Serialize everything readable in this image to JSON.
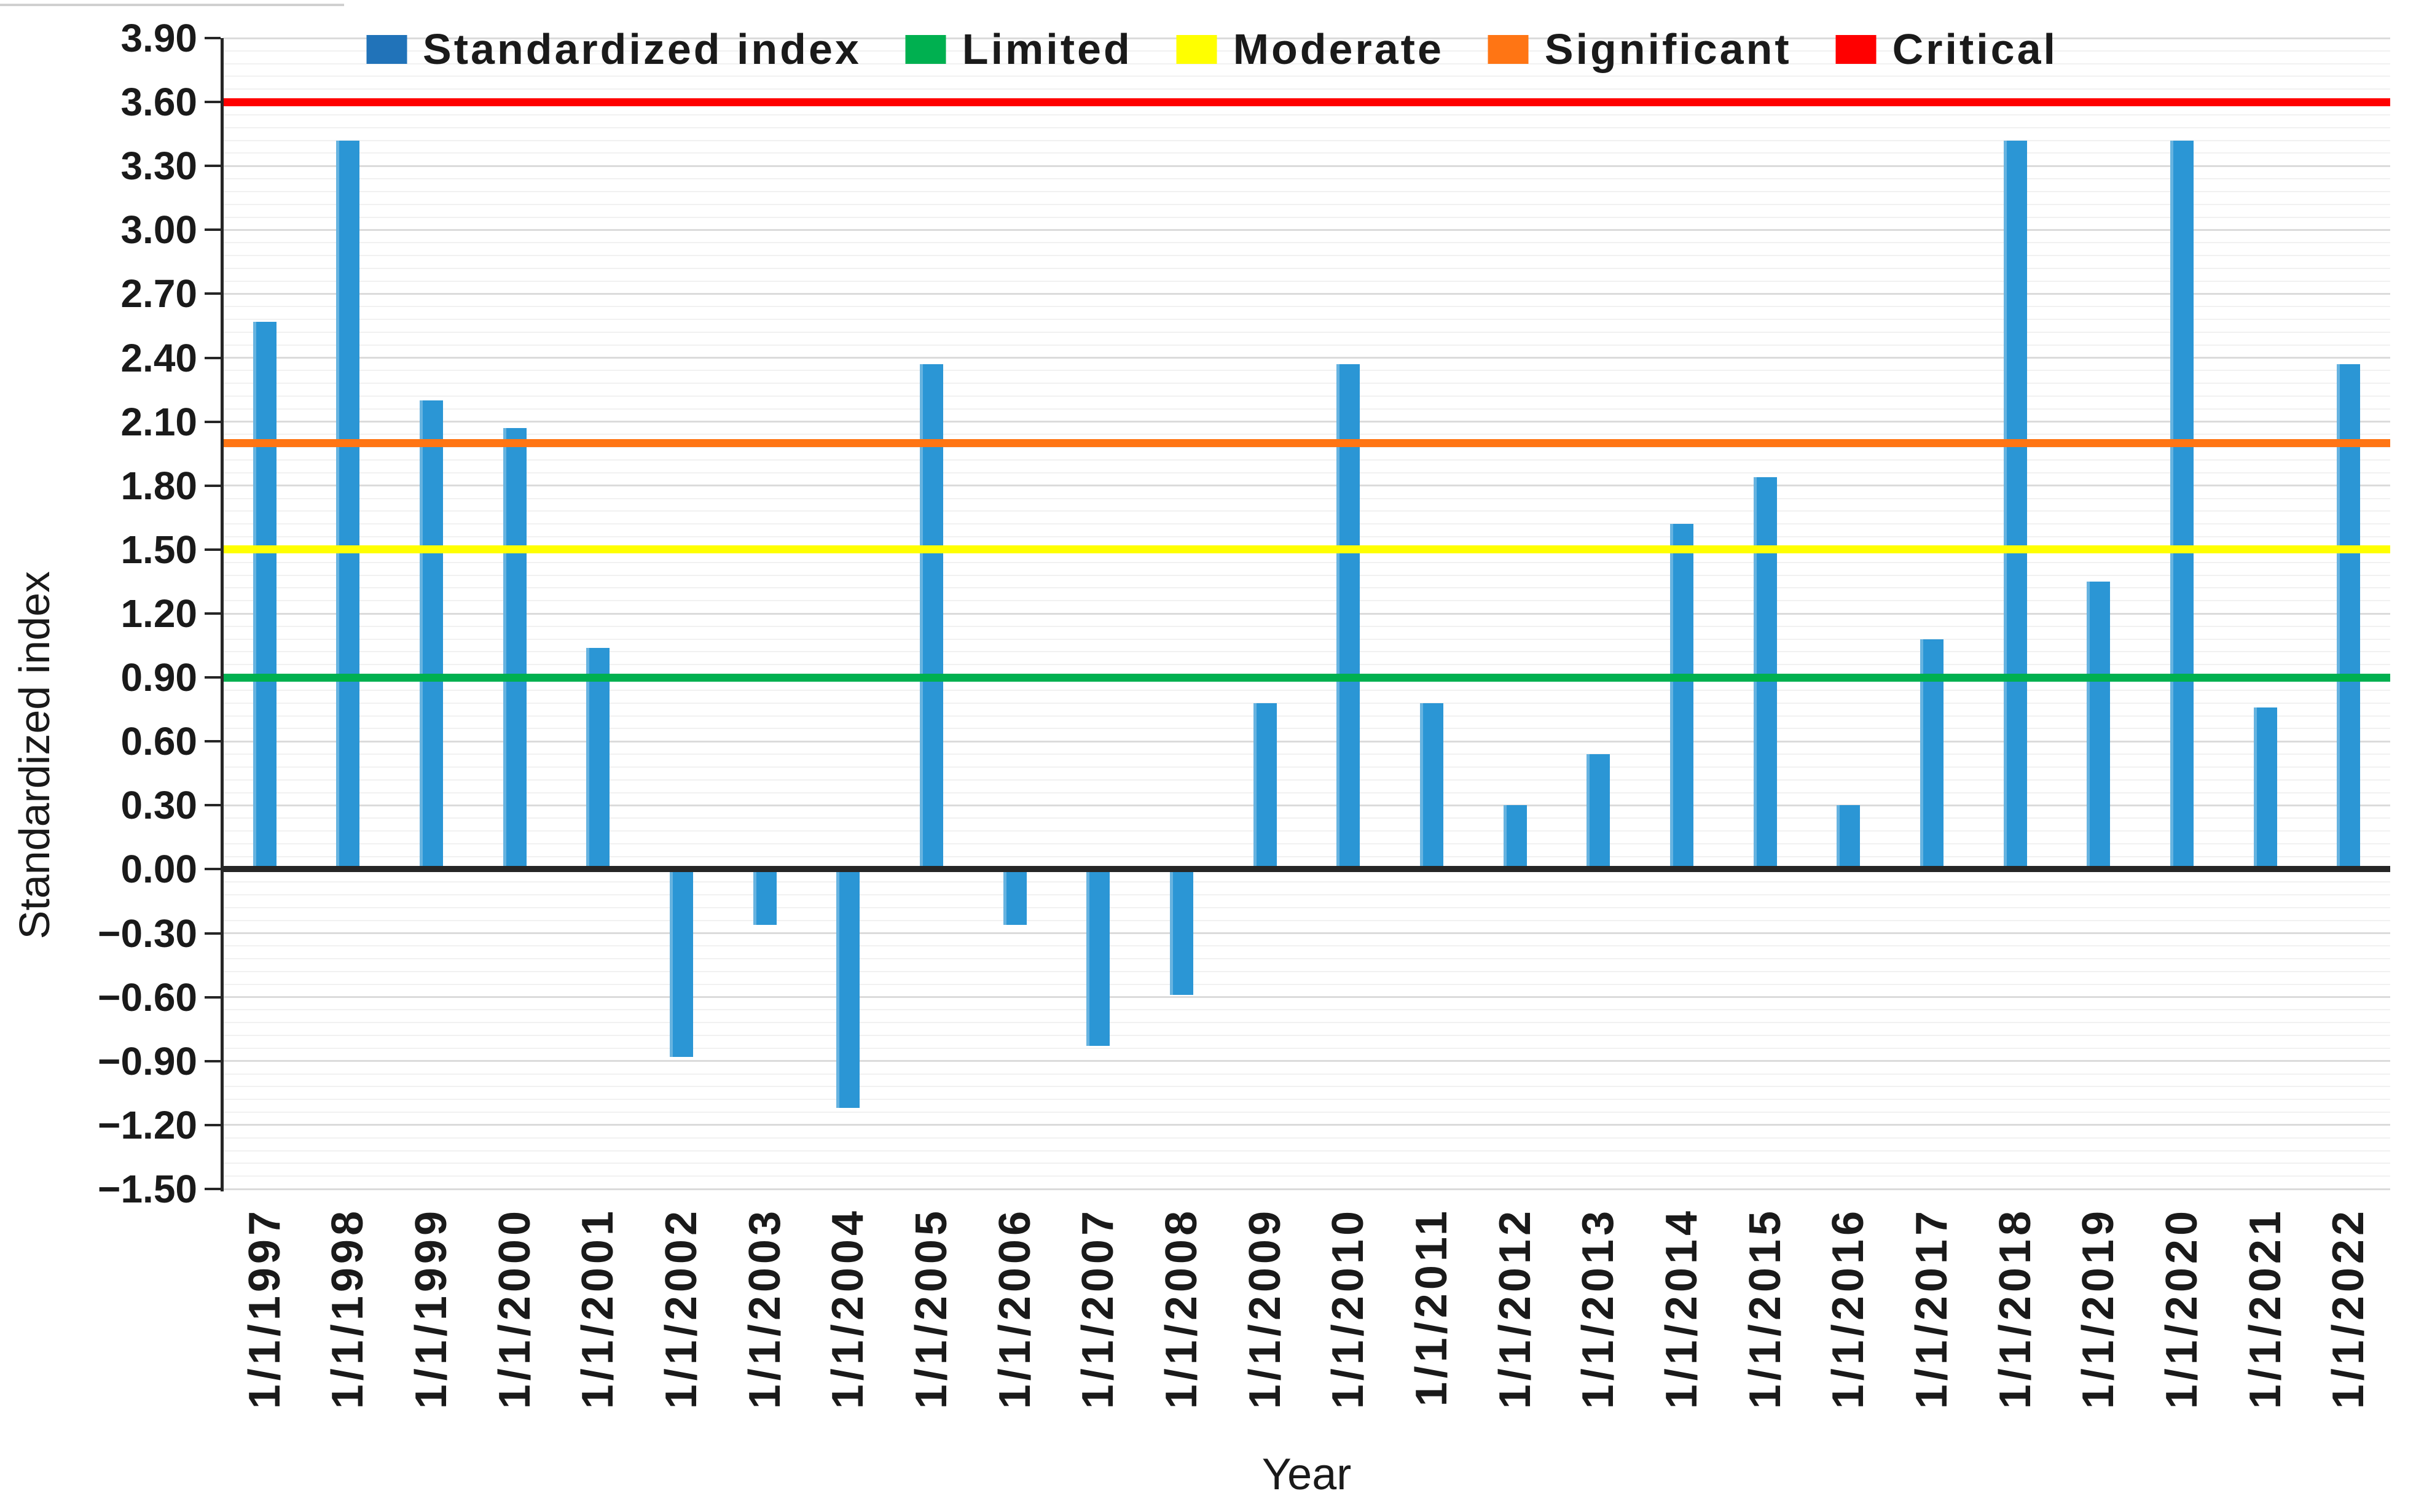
{
  "page": {
    "background": "#ffffff"
  },
  "chart_data": {
    "type": "bar",
    "title": "",
    "xlabel": "Year",
    "ylabel": "Standardized index",
    "ylim": [
      -1.5,
      3.9
    ],
    "ytick_step": 0.3,
    "ytick_labels": [
      "3.90",
      "3.60",
      "3.30",
      "3.00",
      "2.70",
      "2.40",
      "2.10",
      "1.80",
      "1.50",
      "1.20",
      "0.90",
      "0.60",
      "0.30",
      "0.00",
      "−0.30",
      "−0.60",
      "−0.90",
      "−1.20",
      "−1.50"
    ],
    "categories": [
      "1/1/1997",
      "1/1/1998",
      "1/1/1999",
      "1/1/2000",
      "1/1/2001",
      "1/1/2002",
      "1/1/2003",
      "1/1/2004",
      "1/1/2005",
      "1/1/2006",
      "1/1/2007",
      "1/1/2008",
      "1/1/2009",
      "1/1/2010",
      "1/1/2011",
      "1/1/2012",
      "1/1/2013",
      "1/1/2014",
      "1/1/2015",
      "1/1/2016",
      "1/1/2017",
      "1/1/2018",
      "1/1/2019",
      "1/1/2020",
      "1/1/2021",
      "1/1/2022"
    ],
    "series": [
      {
        "name": "Standardized index",
        "color": "#2B96D5",
        "values": [
          2.57,
          3.42,
          2.2,
          2.07,
          1.04,
          -0.88,
          -0.26,
          -1.12,
          2.37,
          -0.26,
          -0.83,
          -0.59,
          0.78,
          2.37,
          0.78,
          0.3,
          0.54,
          1.62,
          1.84,
          0.3,
          1.08,
          3.42,
          1.35,
          3.42,
          0.76,
          2.37
        ]
      }
    ],
    "reference_lines": [
      {
        "name": "Limited",
        "value": 0.9,
        "color": "#00B050"
      },
      {
        "name": "Moderate",
        "value": 1.5,
        "color": "#FFFF00"
      },
      {
        "name": "Significant",
        "value": 2.0,
        "color": "#FF7514"
      },
      {
        "name": "Critical",
        "value": 3.6,
        "color": "#FF0000"
      }
    ],
    "legend": [
      {
        "label": "Standardized index",
        "color": "#2173B9"
      },
      {
        "label": "Limited",
        "color": "#00B050"
      },
      {
        "label": "Moderate",
        "color": "#FFFF00"
      },
      {
        "label": "Significant",
        "color": "#FF7514"
      },
      {
        "label": "Critical",
        "color": "#FF0000"
      }
    ],
    "legend_position": "top-center",
    "grid": {
      "major": true,
      "minor": true,
      "minor_divisions_per_major": 5
    },
    "axis_color": "#262626"
  }
}
